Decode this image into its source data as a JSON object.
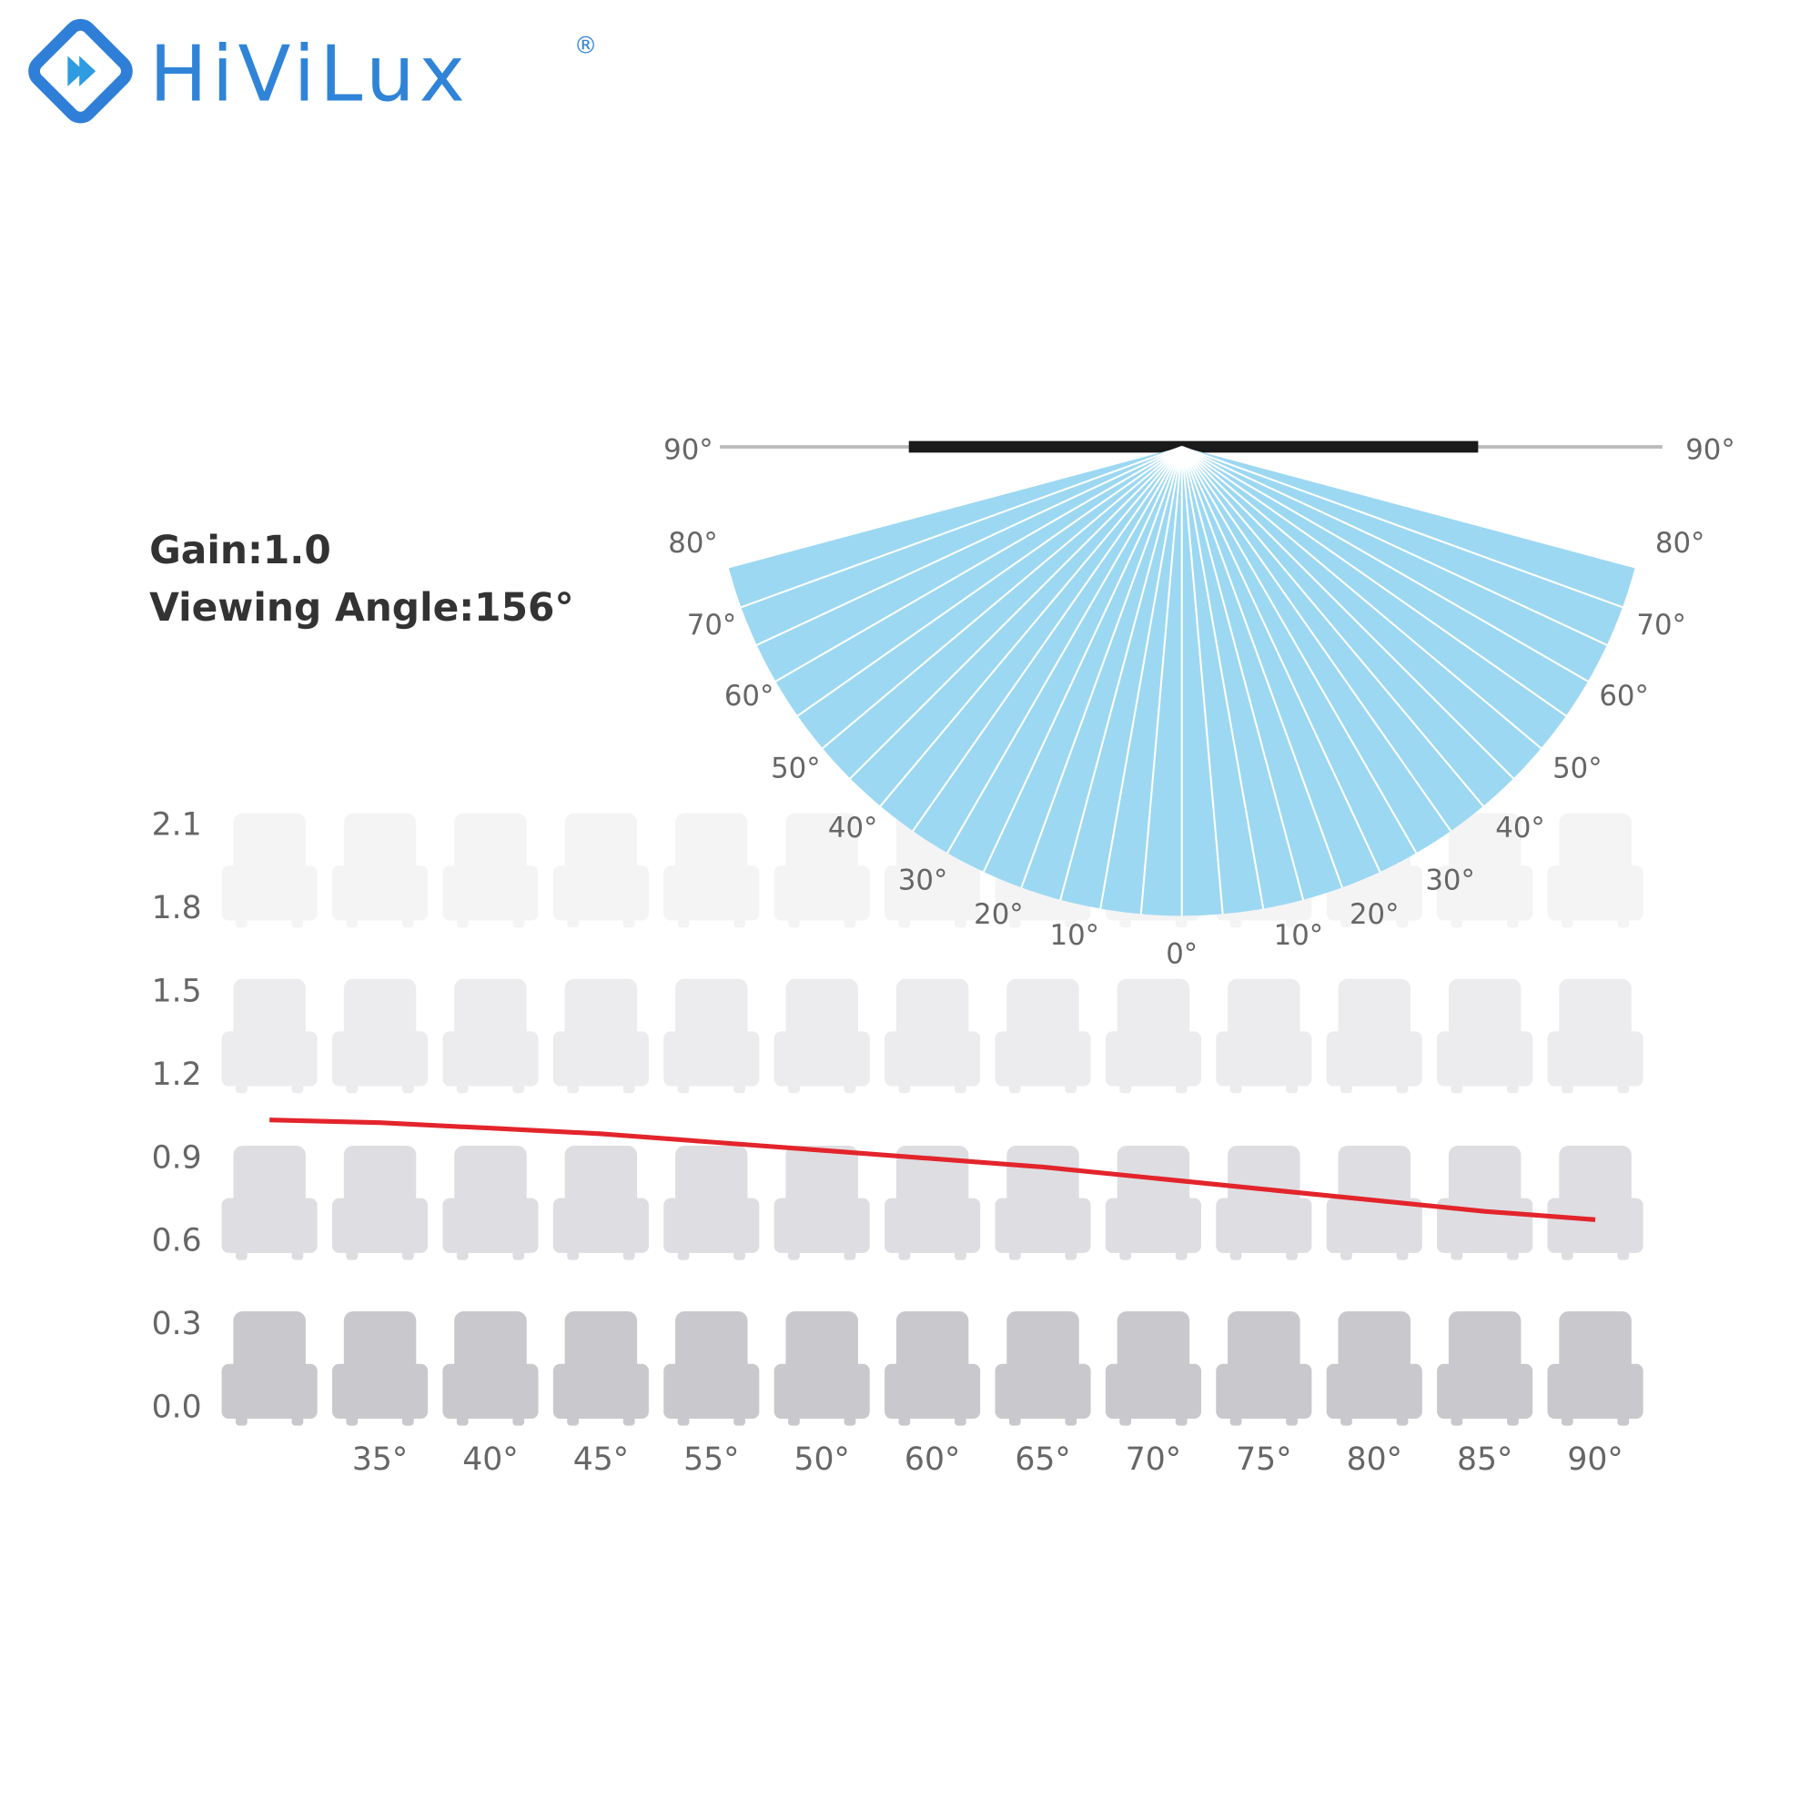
{
  "logo": {
    "text": "HiViLux",
    "mark": "®"
  },
  "chart_data": {
    "type": "line",
    "title": "Gain:1.0",
    "subtitle": "Viewing Angle:156°",
    "categories": [
      null,
      "35°",
      "40°",
      "45°",
      "55°",
      "50°",
      "60°",
      "65°",
      "70°",
      "75°",
      "80°",
      "85°",
      "90°"
    ],
    "values": [
      1.04,
      1.03,
      1.01,
      0.99,
      0.96,
      0.93,
      0.9,
      0.87,
      0.83,
      0.79,
      0.75,
      0.71,
      0.68
    ],
    "color": "#e3242b",
    "ylim": [
      0,
      2.1
    ],
    "yticks": [
      {
        "value": 0,
        "label": "0.0"
      },
      0.3,
      0.6,
      0.9,
      1.2,
      1.5,
      1.8,
      2.1
    ],
    "grid": false
  },
  "fan": {
    "left_labels": [
      "90°",
      "80°",
      "70°",
      "60°",
      "50°",
      "40°",
      "30°",
      "20°",
      "10°"
    ],
    "center_label": "0°",
    "right_labels": [
      "90°",
      "80°",
      "70°",
      "60°",
      "50°",
      "40°",
      "30°",
      "20°",
      "10°"
    ]
  }
}
